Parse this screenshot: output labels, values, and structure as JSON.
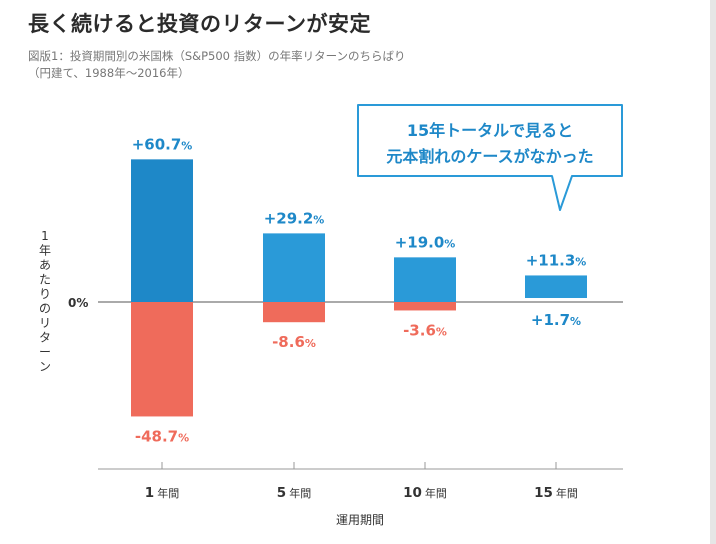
{
  "chart_data": {
    "type": "bar",
    "title": "長く続けると投資のリターンが安定",
    "subtitle_line1": "図版1：投資期間別の米国株（S&P500 指数）の年率リターンのちらばり",
    "subtitle_line2": "（円建て、1988年〜2016年）",
    "categories": [
      {
        "num": "1",
        "unit": "年間"
      },
      {
        "num": "5",
        "unit": "年間"
      },
      {
        "num": "10",
        "unit": "年間"
      },
      {
        "num": "15",
        "unit": "年間"
      }
    ],
    "series": [
      {
        "name": "max",
        "values": [
          60.7,
          29.2,
          19.0,
          11.3
        ],
        "labels": [
          "+60.7",
          "+29.2",
          "+19.0",
          "+11.3"
        ]
      },
      {
        "name": "min",
        "values": [
          -48.7,
          -8.6,
          -3.6,
          1.7
        ],
        "labels": [
          "-48.7",
          "-8.6",
          "-3.6",
          "+1.7"
        ]
      }
    ],
    "percent_sign": "%",
    "zero_label": "0%",
    "ylabel": "1年あたりのリターン",
    "xlabel": "運用期間",
    "ylim": [
      -60,
      70
    ],
    "callout_line1": "15年トータルで見ると",
    "callout_line2": "元本割れのケースがなかった",
    "colors": {
      "positive_dark": "#1e88c8",
      "positive_light": "#2a9ad8",
      "negative": "#ef6b5b",
      "positive_text": "#1e88c8",
      "negative_text": "#ef6b5b"
    }
  }
}
